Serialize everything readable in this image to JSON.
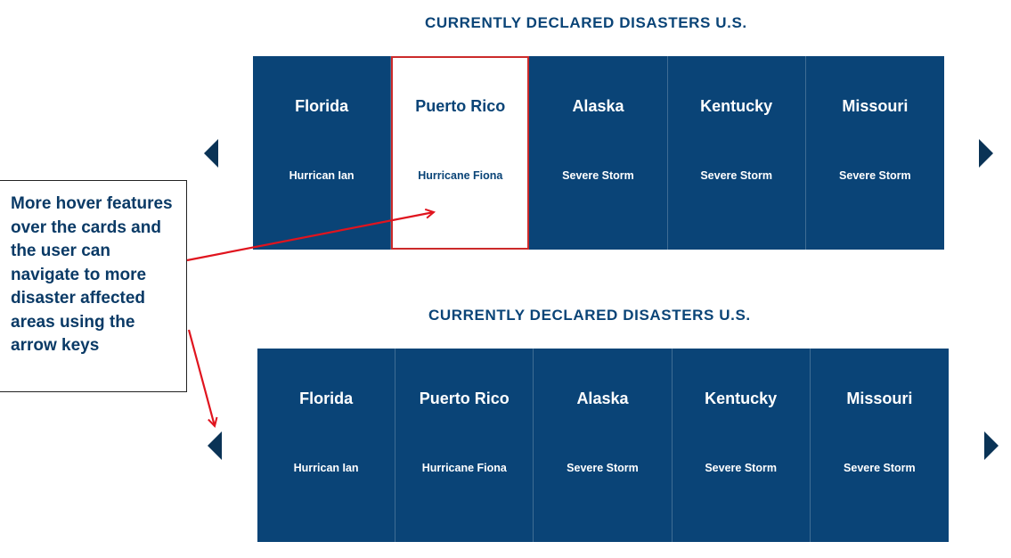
{
  "section_title": "CURRENTLY DECLARED DISASTERS U.S.",
  "cards": [
    {
      "state": "Florida",
      "event": "Hurrican Ian"
    },
    {
      "state": "Puerto Rico",
      "event": "Hurricane Fiona"
    },
    {
      "state": "Alaska",
      "event": "Severe Storm"
    },
    {
      "state": "Kentucky",
      "event": "Severe Storm"
    },
    {
      "state": "Missouri",
      "event": "Severe Storm"
    }
  ],
  "hovered_card": "Puerto Rico",
  "annotation": "More hover features over the cards and the user can navigate to more disaster affected areas using the arrow keys",
  "icons": {
    "prev": "chevron-left-icon",
    "next": "chevron-right-icon"
  },
  "colors": {
    "card_bg": "#0a4477",
    "hover_border": "#cc2a2a",
    "annotation_arrow": "#e0141e",
    "title": "#0a4477"
  }
}
